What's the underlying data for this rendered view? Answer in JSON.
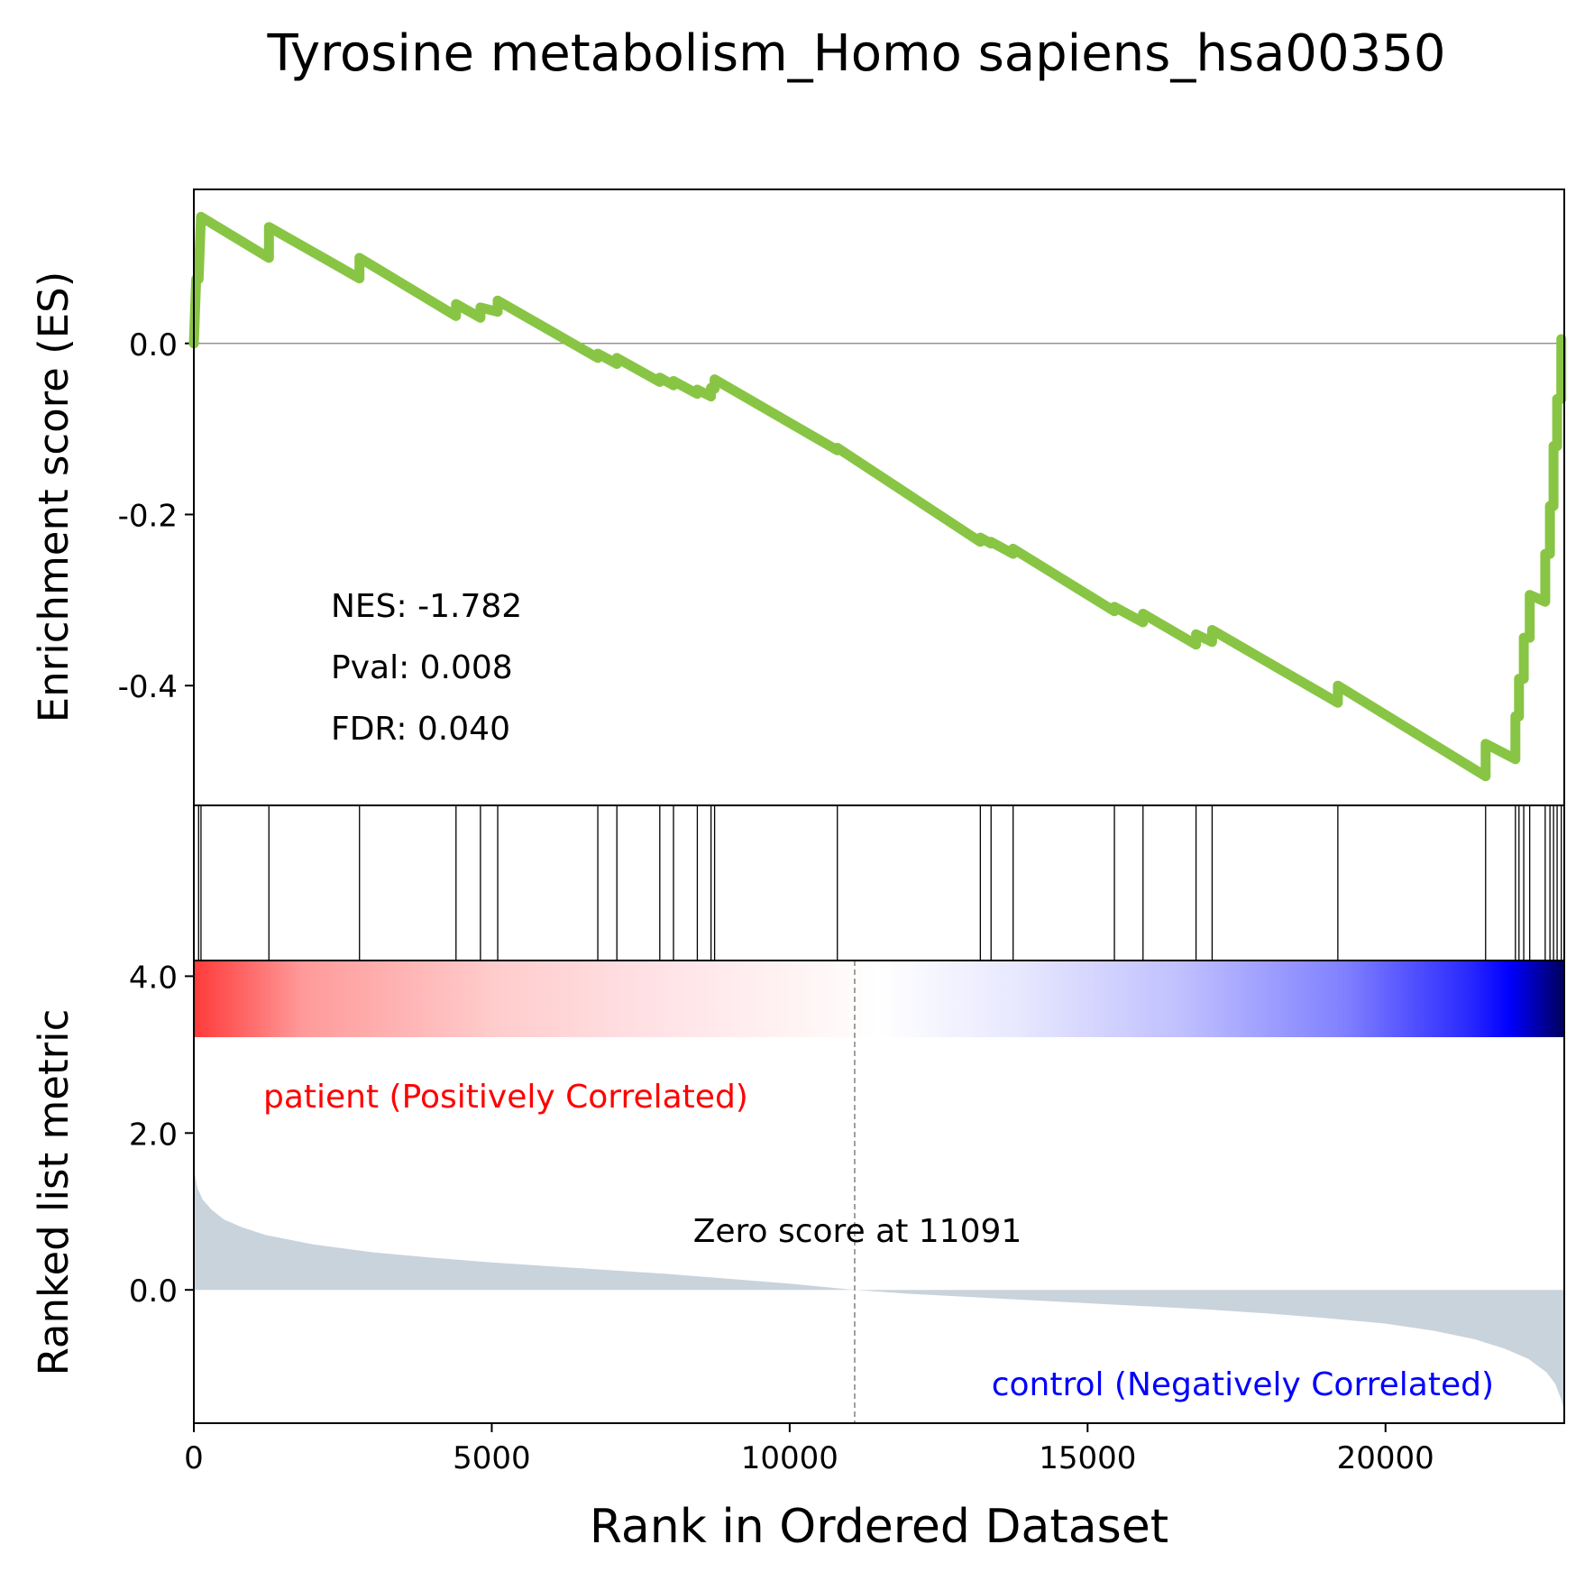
{
  "title": "Tyrosine metabolism_Homo sapiens_hsa00350",
  "colors": {
    "es_line": "#88c544",
    "hit_line": "#000000",
    "metric_fill": "#c9d3dc",
    "pos_label": "#ff0000",
    "neg_label": "#0000ff",
    "zero_line": "#808080"
  },
  "stats": {
    "nes": "NES: -1.782",
    "pval": "Pval: 0.008",
    "fdr": "FDR: 0.040"
  },
  "phenotypes": {
    "positive": "patient (Positively Correlated)",
    "negative": "control (Negatively Correlated)"
  },
  "zero_score": {
    "label": "Zero score at 11091",
    "rank": 11091
  },
  "chart_data": {
    "type": "line",
    "title": "Tyrosine metabolism_Homo sapiens_hsa00350",
    "xlabel": "Rank in Ordered Dataset",
    "xlim": [
      0,
      23000
    ],
    "xticks": [
      0,
      5000,
      10000,
      15000,
      20000
    ],
    "es_panel": {
      "ylabel": "Enrichment score (ES)",
      "ylim": [
        -0.54,
        0.18
      ],
      "yticks": [
        0.0,
        -0.2,
        -0.4
      ],
      "ytick_labels": [
        "0.0",
        "-0.2",
        "-0.4"
      ],
      "hits": [
        80,
        120,
        1260,
        2780,
        4400,
        4810,
        5100,
        6780,
        7100,
        7820,
        8050,
        8450,
        8680,
        8740,
        10800,
        13200,
        13380,
        13750,
        15450,
        15930,
        16820,
        17090,
        19200,
        21680,
        22180,
        22240,
        22320,
        22420,
        22680,
        22760,
        22820,
        22880,
        22950
      ],
      "es_points": [
        [
          0,
          0.0
        ],
        [
          40,
          0.075
        ],
        [
          80,
          0.075
        ],
        [
          120,
          0.148
        ],
        [
          1260,
          0.1
        ],
        [
          1260,
          0.136
        ],
        [
          2780,
          0.076
        ],
        [
          2780,
          0.1
        ],
        [
          4400,
          0.032
        ],
        [
          4400,
          0.046
        ],
        [
          4810,
          0.03
        ],
        [
          4810,
          0.042
        ],
        [
          5100,
          0.037
        ],
        [
          5100,
          0.05
        ],
        [
          6780,
          -0.017
        ],
        [
          6780,
          -0.012
        ],
        [
          7100,
          -0.024
        ],
        [
          7100,
          -0.017
        ],
        [
          7820,
          -0.045
        ],
        [
          7820,
          -0.04
        ],
        [
          8050,
          -0.049
        ],
        [
          8050,
          -0.044
        ],
        [
          8450,
          -0.059
        ],
        [
          8450,
          -0.054
        ],
        [
          8680,
          -0.062
        ],
        [
          8680,
          -0.052
        ],
        [
          8740,
          -0.053
        ],
        [
          8740,
          -0.042
        ],
        [
          10800,
          -0.125
        ],
        [
          10800,
          -0.122
        ],
        [
          13200,
          -0.232
        ],
        [
          13200,
          -0.227
        ],
        [
          13380,
          -0.234
        ],
        [
          13380,
          -0.232
        ],
        [
          13750,
          -0.246
        ],
        [
          13750,
          -0.24
        ],
        [
          15450,
          -0.313
        ],
        [
          15450,
          -0.308
        ],
        [
          15930,
          -0.326
        ],
        [
          15930,
          -0.316
        ],
        [
          16820,
          -0.352
        ],
        [
          16820,
          -0.34
        ],
        [
          17090,
          -0.349
        ],
        [
          17090,
          -0.335
        ],
        [
          19200,
          -0.42
        ],
        [
          19200,
          -0.4
        ],
        [
          21680,
          -0.506
        ],
        [
          21680,
          -0.468
        ],
        [
          22180,
          -0.486
        ],
        [
          22180,
          -0.436
        ],
        [
          22240,
          -0.436
        ],
        [
          22240,
          -0.392
        ],
        [
          22320,
          -0.392
        ],
        [
          22320,
          -0.344
        ],
        [
          22420,
          -0.344
        ],
        [
          22420,
          -0.294
        ],
        [
          22680,
          -0.302
        ],
        [
          22680,
          -0.246
        ],
        [
          22760,
          -0.246
        ],
        [
          22760,
          -0.19
        ],
        [
          22820,
          -0.19
        ],
        [
          22820,
          -0.12
        ],
        [
          22880,
          -0.12
        ],
        [
          22880,
          -0.065
        ],
        [
          22950,
          -0.065
        ],
        [
          22950,
          0.005
        ]
      ]
    },
    "metric_panel": {
      "ylabel": "Ranked list metric",
      "ylim": [
        -1.7,
        4.2
      ],
      "yticks": [
        4.0,
        2.0,
        0.0
      ],
      "ytick_labels": [
        "4.0",
        "2.0",
        "0.0"
      ],
      "metric_points": [
        [
          0,
          1.55
        ],
        [
          60,
          1.3
        ],
        [
          150,
          1.15
        ],
        [
          300,
          1.02
        ],
        [
          500,
          0.9
        ],
        [
          800,
          0.8
        ],
        [
          1200,
          0.7
        ],
        [
          2000,
          0.58
        ],
        [
          3000,
          0.48
        ],
        [
          4000,
          0.41
        ],
        [
          5000,
          0.35
        ],
        [
          6000,
          0.3
        ],
        [
          7000,
          0.25
        ],
        [
          8000,
          0.2
        ],
        [
          9000,
          0.14
        ],
        [
          10000,
          0.08
        ],
        [
          11091,
          0.0
        ],
        [
          12000,
          -0.05
        ],
        [
          13000,
          -0.09
        ],
        [
          14000,
          -0.13
        ],
        [
          15000,
          -0.17
        ],
        [
          16000,
          -0.21
        ],
        [
          17000,
          -0.25
        ],
        [
          18000,
          -0.3
        ],
        [
          19000,
          -0.36
        ],
        [
          20000,
          -0.43
        ],
        [
          20800,
          -0.52
        ],
        [
          21500,
          -0.63
        ],
        [
          22000,
          -0.75
        ],
        [
          22400,
          -0.88
        ],
        [
          22700,
          -1.05
        ],
        [
          22850,
          -1.2
        ],
        [
          22950,
          -1.4
        ],
        [
          23000,
          -1.55
        ]
      ]
    }
  }
}
